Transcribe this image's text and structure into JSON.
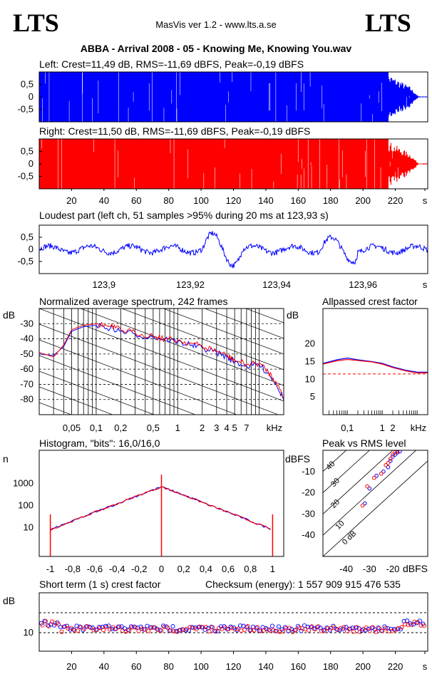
{
  "header": {
    "logo_left": "LTS",
    "logo_right": "LTS",
    "app_title": "MasVis ver 1.2 - www.lts.a.se",
    "file_title": "ABBA - Arrival 2008 - 05 - Knowing Me, Knowing You.wav"
  },
  "colors": {
    "left_channel": "#0000ff",
    "right_channel": "#ff0000"
  },
  "chart_data": [
    {
      "id": "left_waveform",
      "type": "area",
      "title": "Left: Crest=11,49 dB, RMS=-11,69 dBFS, Peak=-0,19 dBFS",
      "ylim": [
        -1,
        1
      ],
      "yticks": [
        "0,5",
        "0",
        "-0,5"
      ],
      "xlim": [
        0,
        240
      ],
      "series": [
        {
          "values": []
        }
      ]
    },
    {
      "id": "right_waveform",
      "type": "area",
      "title": "Right: Crest=11,50 dB, RMS=-11,69 dBFS, Peak=-0,19 dBFS",
      "ylim": [
        -1,
        1
      ],
      "yticks": [
        "0,5",
        "0",
        "-0,5"
      ],
      "xlim": [
        0,
        240
      ],
      "xticks": [
        "20",
        "40",
        "60",
        "80",
        "100",
        "120",
        "140",
        "160",
        "180",
        "200",
        "220",
        "s"
      ],
      "series": [
        {
          "values": []
        }
      ]
    },
    {
      "id": "loudest_part",
      "type": "line",
      "title": "Loudest part (left  ch, 51 samples >95% during 20 ms at 123,93 s)",
      "ylim": [
        -1,
        1
      ],
      "yticks": [
        "0,5",
        "0",
        "-0,5"
      ],
      "xlim": [
        123.885,
        123.975
      ],
      "xticks": [
        "123,9",
        "123,92",
        "123,94",
        "123,96",
        "s"
      ],
      "series": [
        {
          "values": []
        }
      ]
    },
    {
      "id": "average_spectrum",
      "type": "line",
      "title": "Normalized average spectrum, 242 frames",
      "ylabel": "dB",
      "yticks": [
        "-30",
        "-40",
        "-50",
        "-60",
        "-70",
        "-80"
      ],
      "ylim": [
        -90,
        -20
      ],
      "xscale": "log",
      "xticks": [
        "0,05",
        "0,1",
        "0,2",
        "0,5",
        "1",
        "2",
        "3",
        "4",
        "5",
        "7",
        "kHz"
      ],
      "x": [
        0.02,
        0.03,
        0.04,
        0.05,
        0.07,
        0.1,
        0.15,
        0.2,
        0.3,
        0.5,
        0.7,
        1,
        1.5,
        2,
        3,
        4,
        5,
        7,
        10,
        13,
        16,
        20
      ],
      "series": [
        {
          "values": [
            -50,
            -51,
            -45,
            -35,
            -32,
            -31,
            -33,
            -35,
            -37,
            -39,
            -40,
            -42,
            -44,
            -46,
            -49,
            -52,
            -55,
            -58,
            -57,
            -63,
            -69,
            -80
          ]
        },
        {
          "values": [
            -49,
            -52,
            -44,
            -34,
            -31,
            -30,
            -32,
            -34,
            -36,
            -38,
            -40,
            -41,
            -43,
            -45,
            -48,
            -51,
            -54,
            -57,
            -56,
            -62,
            -68,
            -79
          ]
        }
      ]
    },
    {
      "id": "allpassed_crest",
      "type": "line",
      "title": "Allpassed crest factor",
      "ylabel": "dB",
      "yticks": [
        "20",
        "15",
        "10",
        "5"
      ],
      "ylim": [
        0,
        30
      ],
      "xscale": "log",
      "xticks": [
        "0,1",
        "1",
        "2",
        "kHz"
      ],
      "x": [
        0.02,
        0.05,
        0.1,
        0.2,
        0.5,
        1,
        2,
        5,
        10,
        20
      ],
      "reference_line": 11.5,
      "series": [
        {
          "values": [
            14.5,
            15.5,
            16,
            15.5,
            15,
            14.5,
            13.5,
            12.5,
            12,
            12
          ]
        },
        {
          "values": [
            14.3,
            15.2,
            15.6,
            15.3,
            14.9,
            14.3,
            13.3,
            12.3,
            11.8,
            11.8
          ]
        }
      ]
    },
    {
      "id": "histogram",
      "type": "line",
      "title": "Histogram, \"bits\": 16,0/16,0",
      "ylabel": "n",
      "yscale": "log",
      "yticks": [
        "1000",
        "100",
        "10"
      ],
      "xlim": [
        -1.1,
        1.1
      ],
      "xticks": [
        "-1",
        "-0,8",
        "-0,6",
        "-0,4",
        "-0,2",
        "0",
        "0,2",
        "0,4",
        "0,6",
        "0,8",
        "1"
      ],
      "x": [
        -1,
        -0.8,
        -0.6,
        -0.4,
        -0.2,
        0,
        0.2,
        0.4,
        0.6,
        0.8,
        1
      ],
      "series": [
        {
          "values": [
            8,
            20,
            50,
            120,
            300,
            700,
            300,
            120,
            50,
            20,
            8
          ]
        },
        {
          "values": [
            8,
            20,
            50,
            120,
            300,
            700,
            300,
            120,
            50,
            20,
            8
          ]
        }
      ]
    },
    {
      "id": "peak_vs_rms",
      "type": "scatter",
      "title": "Peak vs RMS level",
      "ylabel": "dBFS",
      "xlabel": "dBFS",
      "xticks": [
        "-40",
        "-30",
        "-20"
      ],
      "yticks": [
        "-10",
        "-20",
        "-30",
        "-40"
      ],
      "xlim": [
        -50,
        -5
      ],
      "ylim": [
        -50,
        0
      ],
      "diag_labels": [
        "40",
        "30",
        "20",
        "10",
        "0 dB"
      ],
      "series": [
        {
          "x": [
            -32,
            -30,
            -27,
            -24,
            -22,
            -21,
            -20,
            -19,
            -18,
            -17
          ],
          "y": [
            -25,
            -18,
            -12,
            -10,
            -8,
            -5,
            -3,
            -2,
            -1,
            -0.5
          ]
        },
        {
          "x": [
            -33,
            -31,
            -28,
            -25,
            -23,
            -22,
            -21,
            -20,
            -19,
            -18
          ],
          "y": [
            -26,
            -17,
            -13,
            -11,
            -7,
            -6,
            -4,
            -2,
            -1,
            -0.5
          ]
        }
      ]
    },
    {
      "id": "short_term_crest",
      "type": "scatter",
      "title": "Short term (1 s) crest factor",
      "annotation": "Checksum (energy):  1 557 909 915 476 535",
      "ylabel": "dB",
      "yticks": [
        "10"
      ],
      "xlim": [
        0,
        240
      ],
      "xticks": [
        "20",
        "40",
        "60",
        "80",
        "100",
        "120",
        "140",
        "160",
        "180",
        "200",
        "220",
        "s"
      ],
      "series": [
        {
          "values": []
        },
        {
          "values": []
        }
      ]
    }
  ]
}
